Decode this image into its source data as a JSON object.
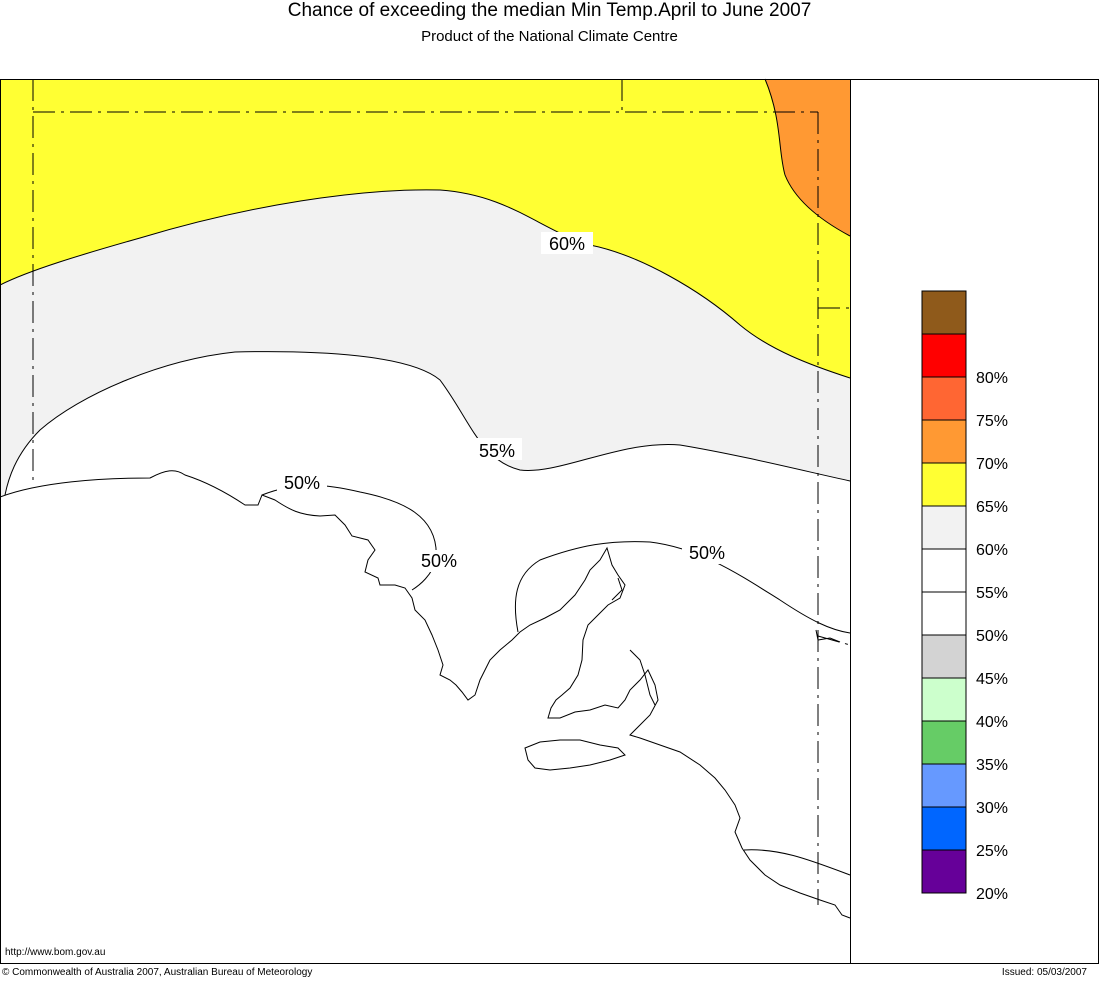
{
  "title": "Chance of exceeding the median Min Temp.April to June 2007",
  "subtitle": "Product of the National Climate Centre",
  "url_text": "http://www.bom.gov.au",
  "copyright": "© Commonwealth of Australia 2007, Australian Bureau of Meteorology",
  "issued": "Issued: 05/03/2007",
  "contour_labels": [
    "60%",
    "55%",
    "50%",
    "50%",
    "50%"
  ],
  "legend": [
    {
      "label": "",
      "color": "#8f5a1b"
    },
    {
      "label": "80%",
      "color": "#ff0000"
    },
    {
      "label": "75%",
      "color": "#ff6633"
    },
    {
      "label": "70%",
      "color": "#ff9933"
    },
    {
      "label": "65%",
      "color": "#ffff33"
    },
    {
      "label": "60%",
      "color": "#f2f2f2"
    },
    {
      "label": "55%",
      "color": "#ffffff"
    },
    {
      "label": "50%",
      "color": "#ffffff"
    },
    {
      "label": "45%",
      "color": "#d3d3d3"
    },
    {
      "label": "40%",
      "color": "#ccffcc"
    },
    {
      "label": "35%",
      "color": "#66cc66"
    },
    {
      "label": "30%",
      "color": "#6699ff"
    },
    {
      "label": "25%",
      "color": "#0066ff"
    },
    {
      "label": "20%",
      "color": "#660099"
    }
  ],
  "colors": {
    "yellow_zone": "#ffff33",
    "orange_zone": "#ff9933",
    "light_grey_zone": "#f2f2f2"
  }
}
